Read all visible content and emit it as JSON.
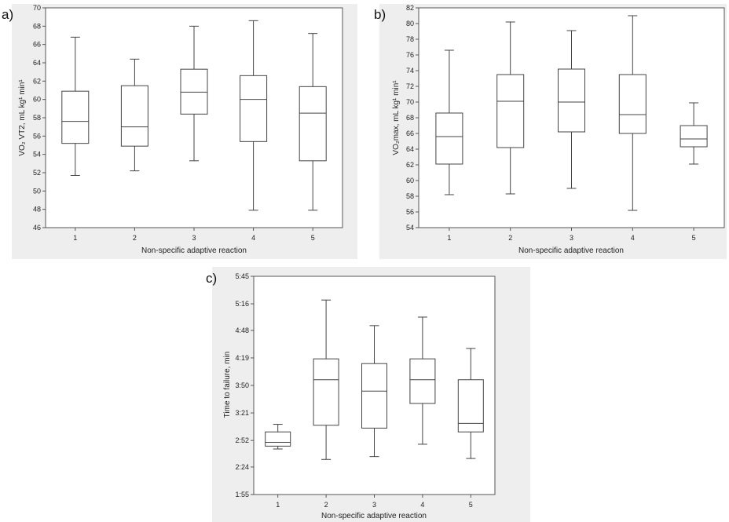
{
  "chart_data": [
    {
      "type": "box",
      "panel_label": "a)",
      "xlabel": "Non-specific adaptive reaction",
      "ylabel": "VO₂ VT2, mL kg¹ min¹",
      "ylim": [
        46,
        70
      ],
      "y_ticks": [
        "46",
        "48",
        "50",
        "52",
        "54",
        "56",
        "58",
        "60",
        "62",
        "64",
        "66",
        "68",
        "70"
      ],
      "y_tick_values": [
        46,
        48,
        50,
        52,
        54,
        56,
        58,
        60,
        62,
        64,
        66,
        68,
        70
      ],
      "categories": [
        "1",
        "2",
        "3",
        "4",
        "5"
      ],
      "boxes": [
        {
          "min": 51.7,
          "q1": 55.2,
          "median": 57.6,
          "q3": 60.9,
          "max": 66.8
        },
        {
          "min": 52.2,
          "q1": 54.9,
          "median": 57.0,
          "q3": 61.5,
          "max": 64.4
        },
        {
          "min": 53.3,
          "q1": 58.4,
          "median": 60.8,
          "q3": 63.3,
          "max": 68.0
        },
        {
          "min": 47.9,
          "q1": 55.4,
          "median": 60.0,
          "q3": 62.6,
          "max": 68.6
        },
        {
          "min": 47.9,
          "q1": 53.3,
          "median": 58.5,
          "q3": 61.4,
          "max": 67.2
        }
      ]
    },
    {
      "type": "box",
      "panel_label": "b)",
      "xlabel": "Non-specific adaptive reaction",
      "ylabel": "VO₂max, mL kg¹ min¹",
      "ylim": [
        54,
        82
      ],
      "y_ticks": [
        "54",
        "56",
        "58",
        "60",
        "62",
        "64",
        "66",
        "68",
        "70",
        "72",
        "74",
        "76",
        "78",
        "80",
        "82"
      ],
      "y_tick_values": [
        54,
        56,
        58,
        60,
        62,
        64,
        66,
        68,
        70,
        72,
        74,
        76,
        78,
        80,
        82
      ],
      "categories": [
        "1",
        "2",
        "3",
        "4",
        "5"
      ],
      "boxes": [
        {
          "min": 58.2,
          "q1": 62.1,
          "median": 65.6,
          "q3": 68.6,
          "max": 76.6
        },
        {
          "min": 58.3,
          "q1": 64.2,
          "median": 70.1,
          "q3": 73.5,
          "max": 80.2
        },
        {
          "min": 59.0,
          "q1": 66.2,
          "median": 70.0,
          "q3": 74.2,
          "max": 79.1
        },
        {
          "min": 56.2,
          "q1": 66.0,
          "median": 68.4,
          "q3": 73.5,
          "max": 81.0
        },
        {
          "min": 62.1,
          "q1": 64.3,
          "median": 65.3,
          "q3": 67.0,
          "max": 69.9
        }
      ]
    },
    {
      "type": "box",
      "panel_label": "c)",
      "xlabel": "Non-specific adaptive reaction",
      "ylabel": "Time to failure, min",
      "ylim_seconds": [
        115,
        345
      ],
      "y_ticks": [
        "1:55",
        "2:24",
        "2:52",
        "3:21",
        "3:50",
        "4:19",
        "4:48",
        "5:16",
        "5:45"
      ],
      "y_tick_values_seconds": [
        115,
        144,
        172,
        201,
        230,
        259,
        288,
        316,
        345
      ],
      "categories": [
        "1",
        "2",
        "3",
        "4",
        "5"
      ],
      "boxes": [
        {
          "min": 163,
          "q1": 166,
          "median": 170,
          "q3": 181,
          "max": 189
        },
        {
          "min": 152,
          "q1": 188,
          "median": 236,
          "q3": 258,
          "max": 320
        },
        {
          "min": 155,
          "q1": 185,
          "median": 224,
          "q3": 253,
          "max": 293
        },
        {
          "min": 168,
          "q1": 211,
          "median": 236,
          "q3": 258,
          "max": 302
        },
        {
          "min": 153,
          "q1": 181,
          "median": 190,
          "q3": 236,
          "max": 269
        }
      ]
    }
  ]
}
